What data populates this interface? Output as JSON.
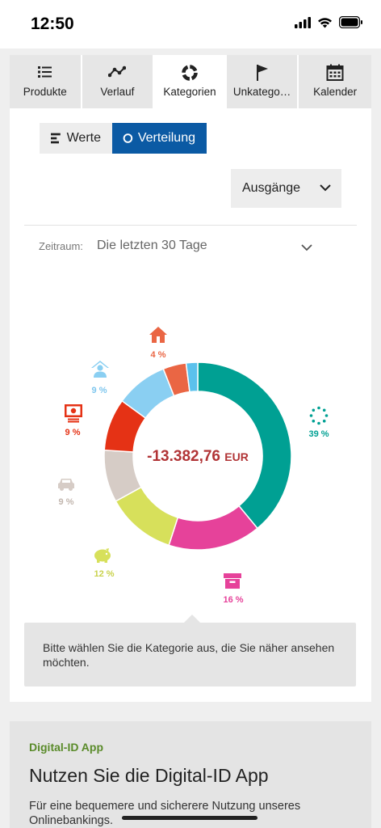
{
  "status": {
    "time": "12:50"
  },
  "tabs": [
    {
      "label": "Produkte",
      "icon": "list-icon",
      "active": false
    },
    {
      "label": "Verlauf",
      "icon": "line-chart-icon",
      "active": false
    },
    {
      "label": "Kategorien",
      "icon": "donut-icon",
      "active": true
    },
    {
      "label": "Unkatego…",
      "icon": "flag-icon",
      "active": false
    },
    {
      "label": "Kalender",
      "icon": "calendar-icon",
      "active": false
    }
  ],
  "view_toggle": {
    "values_label": "Werte",
    "distribution_label": "Verteilung",
    "selected": "Verteilung"
  },
  "direction": {
    "selected": "Ausgänge"
  },
  "period": {
    "label": "Zeitraum:",
    "value": "Die letzten 30 Tage"
  },
  "total": {
    "amount": "-13.382,76",
    "currency": "EUR"
  },
  "chart_data": {
    "type": "pie",
    "center_label": "-13.382,76 EUR",
    "slices": [
      {
        "icon": "dots-circle-icon",
        "label": "39 %",
        "value": 39,
        "color": "#00a093"
      },
      {
        "icon": "box-icon",
        "label": "16 %",
        "value": 16,
        "color": "#e6429a"
      },
      {
        "icon": "piggy-bank-icon",
        "label": "12 %",
        "value": 12,
        "color": "#d7e05b"
      },
      {
        "icon": "car-icon",
        "label": "9 %",
        "value": 9,
        "color": "#d6ccc6"
      },
      {
        "icon": "cash-register-icon",
        "label": "9 %",
        "value": 9,
        "color": "#e53215"
      },
      {
        "icon": "user-house-icon",
        "label": "9 %",
        "value": 9,
        "color": "#8acff2"
      },
      {
        "icon": "house-icon",
        "label": "4 %",
        "value": 4,
        "color": "#ea6644"
      },
      {
        "icon": "",
        "label": "",
        "value": 2,
        "color": "#5bc1ec"
      }
    ]
  },
  "hint": {
    "text": "Bitte wählen Sie die Kategorie aus, die Sie näher ansehen möchten."
  },
  "promo": {
    "kicker": "Digital-ID App",
    "title": "Nutzen Sie die Digital-ID App",
    "body": "Für eine bequemere und sicherere Nutzung unseres Onlinebankings."
  }
}
